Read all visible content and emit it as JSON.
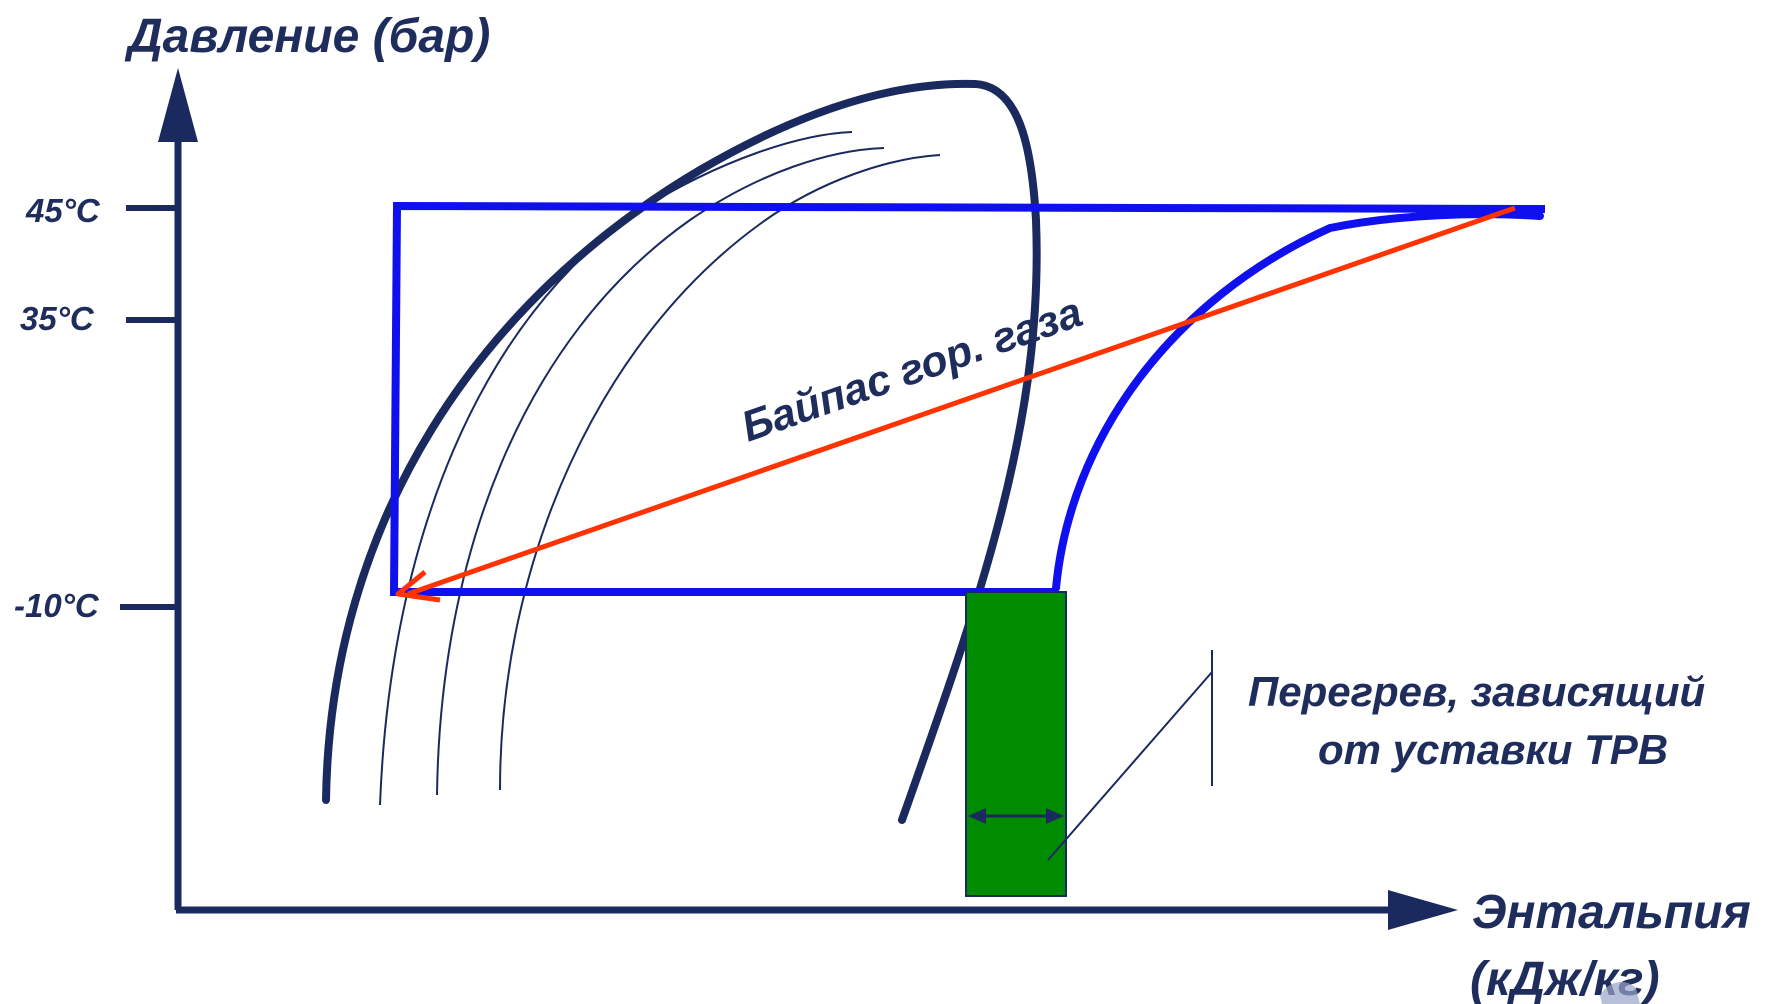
{
  "axes": {
    "y_label": "Давление (бар)",
    "x_label_line1": "Энтальпия",
    "x_label_line2": "(кДж/кг)",
    "ticks": [
      "45°C",
      "35°C",
      "-10°C"
    ]
  },
  "annotations": {
    "bypass": "Байпас гор. газа",
    "superheat_line1": "Перегрев, зависящий",
    "superheat_line2": "от уставки ТРВ"
  },
  "colors": {
    "navy": "#1b2a5e",
    "blue": "#1010ee",
    "red": "#ff3300",
    "green": "#008c00"
  }
}
